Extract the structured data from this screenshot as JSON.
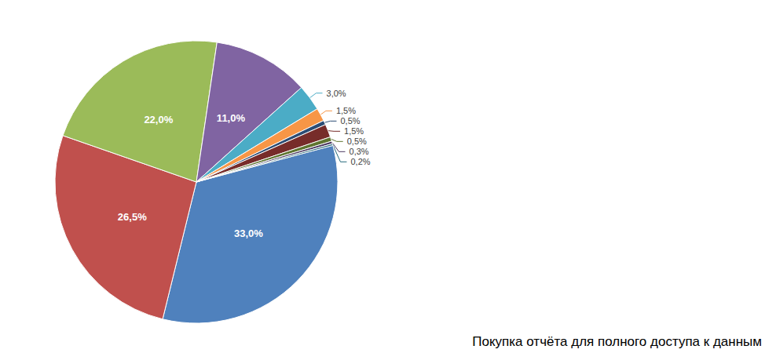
{
  "chart_data": {
    "type": "pie",
    "values": [
      33.0,
      26.5,
      22.0,
      11.0,
      3.0,
      1.5,
      0.5,
      1.5,
      0.5,
      0.3,
      0.2
    ],
    "value_labels": [
      "33,0%",
      "26,5%",
      "22,0%",
      "11,0%",
      "3,0%",
      "1,5%",
      "0,5%",
      "1,5%",
      "0,5%",
      "0,3%",
      "0,2%"
    ],
    "colors": [
      "#4f81bd",
      "#c0504d",
      "#9bbb59",
      "#8064a2",
      "#4bacc6",
      "#f79646",
      "#2c4d75",
      "#772c2a",
      "#5f7530",
      "#4d3b62",
      "#276a7c"
    ],
    "data_labels": true,
    "annotations": [
      "Покупка отчёта для полного доступа к данным"
    ]
  }
}
